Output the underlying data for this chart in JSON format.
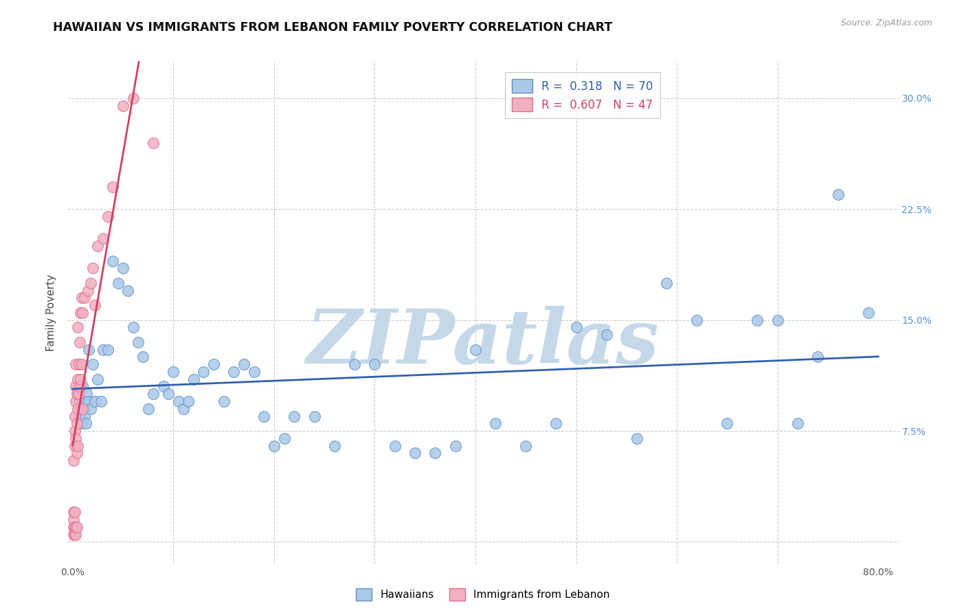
{
  "title": "HAWAIIAN VS IMMIGRANTS FROM LEBANON FAMILY POVERTY CORRELATION CHART",
  "source": "Source: ZipAtlas.com",
  "ylabel": "Family Poverty",
  "y_ticks": [
    0.0,
    0.075,
    0.15,
    0.225,
    0.3
  ],
  "y_tick_labels": [
    "",
    "7.5%",
    "15.0%",
    "22.5%",
    "30.0%"
  ],
  "xlim": [
    -0.005,
    0.82
  ],
  "ylim": [
    -0.015,
    0.325
  ],
  "hawaii_R": 0.318,
  "hawaii_N": 70,
  "lebanon_R": 0.607,
  "lebanon_N": 47,
  "hawaii_color": "#aac8e8",
  "hawaii_edge_color": "#6090c8",
  "hawaii_line_color": "#3060b0",
  "lebanon_color": "#f0b0c0",
  "lebanon_edge_color": "#e07090",
  "lebanon_line_color": "#d04060",
  "watermark": "ZIPatlas",
  "watermark_color": "#c5d8ea",
  "background_color": "#ffffff",
  "grid_color": "#cccccc",
  "hawaii_x": [
    0.005,
    0.006,
    0.007,
    0.008,
    0.009,
    0.01,
    0.01,
    0.011,
    0.012,
    0.013,
    0.014,
    0.015,
    0.016,
    0.018,
    0.02,
    0.022,
    0.025,
    0.028,
    0.03,
    0.035,
    0.04,
    0.045,
    0.05,
    0.055,
    0.06,
    0.065,
    0.07,
    0.075,
    0.08,
    0.09,
    0.095,
    0.1,
    0.105,
    0.11,
    0.115,
    0.12,
    0.13,
    0.14,
    0.15,
    0.16,
    0.17,
    0.18,
    0.19,
    0.2,
    0.21,
    0.22,
    0.24,
    0.26,
    0.28,
    0.3,
    0.32,
    0.34,
    0.36,
    0.38,
    0.4,
    0.42,
    0.45,
    0.48,
    0.5,
    0.53,
    0.56,
    0.59,
    0.62,
    0.65,
    0.68,
    0.7,
    0.72,
    0.74,
    0.76,
    0.79
  ],
  "hawaii_y": [
    0.1,
    0.095,
    0.09,
    0.085,
    0.08,
    0.105,
    0.095,
    0.09,
    0.085,
    0.08,
    0.1,
    0.095,
    0.13,
    0.09,
    0.12,
    0.095,
    0.11,
    0.095,
    0.13,
    0.13,
    0.19,
    0.175,
    0.185,
    0.17,
    0.145,
    0.135,
    0.125,
    0.09,
    0.1,
    0.105,
    0.1,
    0.115,
    0.095,
    0.09,
    0.095,
    0.11,
    0.115,
    0.12,
    0.095,
    0.115,
    0.12,
    0.115,
    0.085,
    0.065,
    0.07,
    0.085,
    0.085,
    0.065,
    0.12,
    0.12,
    0.065,
    0.06,
    0.06,
    0.065,
    0.13,
    0.08,
    0.065,
    0.08,
    0.145,
    0.14,
    0.07,
    0.175,
    0.15,
    0.08,
    0.15,
    0.15,
    0.08,
    0.125,
    0.235,
    0.155
  ],
  "lebanon_x": [
    0.001,
    0.001,
    0.001,
    0.001,
    0.001,
    0.002,
    0.002,
    0.002,
    0.002,
    0.002,
    0.002,
    0.003,
    0.003,
    0.003,
    0.003,
    0.003,
    0.003,
    0.004,
    0.004,
    0.004,
    0.004,
    0.005,
    0.005,
    0.005,
    0.005,
    0.006,
    0.006,
    0.007,
    0.007,
    0.008,
    0.008,
    0.009,
    0.009,
    0.01,
    0.01,
    0.012,
    0.015,
    0.018,
    0.02,
    0.022,
    0.025,
    0.03,
    0.035,
    0.04,
    0.05,
    0.06,
    0.08
  ],
  "lebanon_y": [
    0.005,
    0.01,
    0.015,
    0.02,
    0.055,
    0.005,
    0.01,
    0.02,
    0.065,
    0.075,
    0.085,
    0.005,
    0.01,
    0.07,
    0.095,
    0.105,
    0.12,
    0.01,
    0.06,
    0.08,
    0.1,
    0.065,
    0.09,
    0.11,
    0.145,
    0.1,
    0.12,
    0.105,
    0.135,
    0.11,
    0.155,
    0.12,
    0.165,
    0.09,
    0.155,
    0.165,
    0.17,
    0.175,
    0.185,
    0.16,
    0.2,
    0.205,
    0.22,
    0.24,
    0.295,
    0.3,
    0.27
  ],
  "lebanon_line_xmin": 0.0,
  "lebanon_line_xmax": 0.17,
  "hawaii_line_xmin": 0.0,
  "hawaii_line_xmax": 0.8
}
